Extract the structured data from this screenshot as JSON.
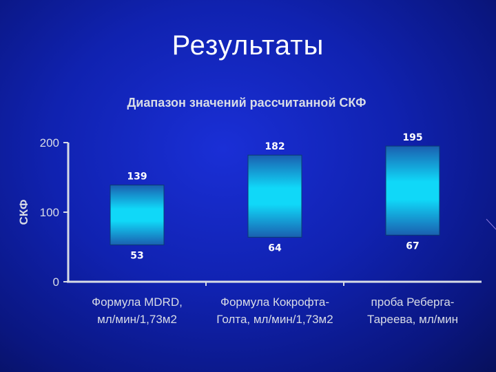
{
  "slide": {
    "title": "Результаты"
  },
  "chart_data": {
    "type": "bar",
    "title": "Диапазон значений рассчитанной СКФ",
    "ylabel": "СКФ",
    "xlabel": "",
    "ylim": [
      0,
      200
    ],
    "yticks": [
      0,
      100,
      200
    ],
    "grid": false,
    "categories": [
      {
        "line1": "Формула MDRD,",
        "line2": "мл/мин/1,73м2"
      },
      {
        "line1": "Формула Кокрофта-",
        "line2": "Голта, мл/мин/1,73м2"
      },
      {
        "line1": "проба Реберга-",
        "line2": "Тареева, мл/мин"
      }
    ],
    "ranges": [
      {
        "low": 53,
        "high": 139
      },
      {
        "low": 64,
        "high": 182
      },
      {
        "low": 67,
        "high": 195
      }
    ]
  }
}
